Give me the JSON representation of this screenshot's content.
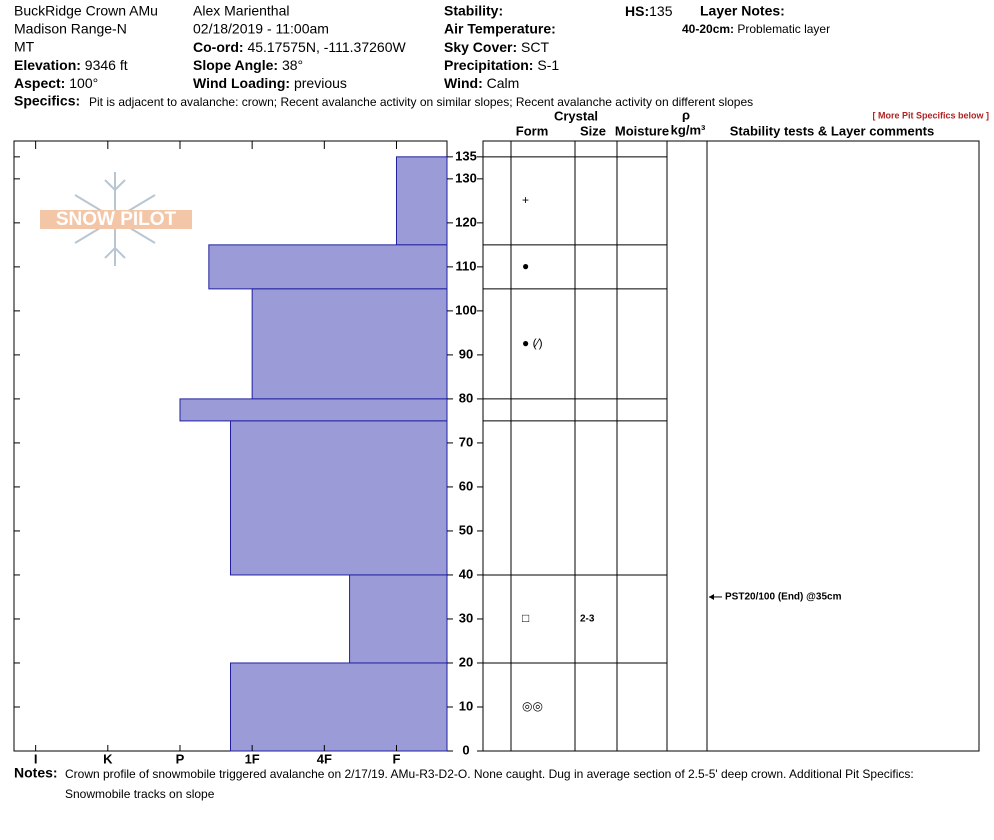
{
  "header": {
    "site": "BuckRidge Crown AMu",
    "range": "Madison Range-N",
    "state": "MT",
    "elevation": {
      "label": "Elevation:",
      "value": "9346 ft"
    },
    "aspect": {
      "label": "Aspect:",
      "value": "100°"
    },
    "observer": "Alex Marienthal",
    "datetime": "02/18/2019 - 11:00am",
    "coord": {
      "label": "Co-ord:",
      "value": "45.17575N, -111.37260W"
    },
    "slope_angle": {
      "label": "Slope Angle:",
      "value": "38°"
    },
    "wind_loading": {
      "label": "Wind Loading:",
      "value": "previous"
    },
    "stability": {
      "label": "Stability:"
    },
    "air_temperature": {
      "label": "Air Temperature:"
    },
    "sky_cover": {
      "label": "Sky Cover:",
      "value": "SCT"
    },
    "precipitation": {
      "label": "Precipitation:",
      "value": "S-1"
    },
    "wind": {
      "label": "Wind:",
      "value": "Calm"
    },
    "hs": {
      "label": "HS:",
      "value": 135
    },
    "layer_notes": {
      "label": "Layer Notes:",
      "range": "40-20cm:",
      "text": "Problematic layer"
    },
    "specifics": {
      "label": "Specifics:",
      "text": "Pit is adjacent to avalanche: crown; Recent avalanche activity on similar slopes; Recent avalanche activity on different slopes"
    },
    "more_link": "[ More Pit Specifics below ]"
  },
  "logo": "SNOW PILOT",
  "chart_data": {
    "type": "hardness-profile",
    "top": [
      135,
      115,
      105,
      80,
      75,
      40,
      20
    ],
    "bottom": [
      115,
      105,
      80,
      75,
      40,
      20,
      0
    ],
    "values": [
      1,
      3.6,
      3,
      4,
      3.3,
      1.65,
      3.3
    ],
    "color": "#9b9bd7",
    "xlim": [
      6.3,
      0.3
    ],
    "xticks": [
      {
        "value": 6,
        "label": "I"
      },
      {
        "value": 5,
        "label": "K"
      },
      {
        "value": 4,
        "label": "P"
      },
      {
        "value": 3,
        "label": "1F"
      },
      {
        "value": 2,
        "label": "4F"
      },
      {
        "value": 1,
        "label": "F"
      }
    ],
    "ylim": [
      0,
      138.6
    ],
    "yticks": [
      0,
      10,
      20,
      30,
      40,
      50,
      60,
      70,
      80,
      90,
      100,
      110,
      120,
      130,
      135
    ]
  },
  "table": {
    "headers": {
      "crystal": "Crystal",
      "form": "Form",
      "size": "Size",
      "moisture": "Moisture",
      "rho": "ρ",
      "density_unit": "kg/m³",
      "comments": "Stability tests & Layer comments"
    },
    "forms": [
      "+",
      "●",
      "● (⁄)",
      null,
      null,
      "□",
      "◎◎"
    ],
    "sizes": [
      null,
      null,
      null,
      null,
      null,
      "2-3",
      null
    ],
    "test": {
      "text": "PST20/100 (End) @35cm",
      "depth": 35
    }
  },
  "notes": {
    "label": "Notes:",
    "lines": [
      "Crown profile of snowmobile triggered avalanche on 2/17/19. AMu-R3-D2-O. None caught. Dug in average section of 2.5-5' deep crown. Additional Pit Specifics:",
      "Snowmobile tracks on slope"
    ]
  }
}
